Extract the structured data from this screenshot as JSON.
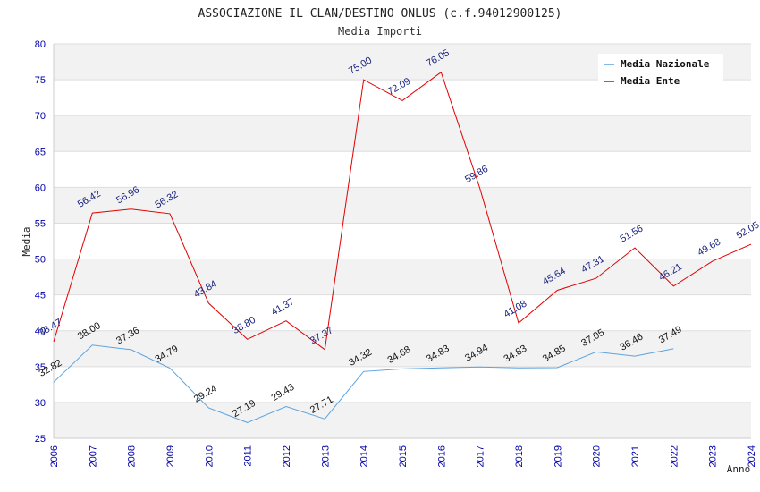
{
  "chart_data": {
    "type": "line",
    "title": "ASSOCIAZIONE IL CLAN/DESTINO ONLUS (c.f.94012900125)",
    "subtitle": "Media Importi",
    "xlabel": "Anno",
    "ylabel": "Media",
    "ylim": [
      25,
      80
    ],
    "yticks": [
      "25",
      "30",
      "35",
      "40",
      "45",
      "50",
      "55",
      "60",
      "65",
      "70",
      "75",
      "80"
    ],
    "categories": [
      "2006",
      "2007",
      "2008",
      "2009",
      "2010",
      "2011",
      "2012",
      "2013",
      "2014",
      "2015",
      "2016",
      "2017",
      "2018",
      "2019",
      "2020",
      "2021",
      "2022",
      "2023",
      "2024"
    ],
    "legend_position": "top-right",
    "series": [
      {
        "name": "Media Nazionale",
        "color": "#5ba3e0",
        "values": [
          32.82,
          38.0,
          37.36,
          34.79,
          29.24,
          27.19,
          29.43,
          27.71,
          34.32,
          34.68,
          34.83,
          34.94,
          34.83,
          34.85,
          37.05,
          36.46,
          37.49,
          null,
          null
        ],
        "labels": [
          "32.82",
          "38.00",
          "37.36",
          "34.79",
          "29.24",
          "27.19",
          "29.43",
          "27.71",
          "34.32",
          "34.68",
          "34.83",
          "34.94",
          "34.83",
          "34.85",
          "37.05",
          "36.46",
          "37.49",
          null,
          null
        ]
      },
      {
        "name": "Media Ente",
        "color": "#e00000",
        "values": [
          38.47,
          56.42,
          56.96,
          56.32,
          43.84,
          38.8,
          41.37,
          37.37,
          75.0,
          72.09,
          76.05,
          59.86,
          41.08,
          45.64,
          47.31,
          51.56,
          46.21,
          49.68,
          52.05
        ],
        "labels": [
          "38.47",
          "56.42",
          "56.96",
          "56.32",
          "43.84",
          "38.80",
          "41.37",
          "37.37",
          "75.00",
          "72.09",
          "76.05",
          "59.86",
          "41.08",
          "45.64",
          "47.31",
          "51.56",
          "46.21",
          "49.68",
          "52.05"
        ]
      }
    ]
  }
}
